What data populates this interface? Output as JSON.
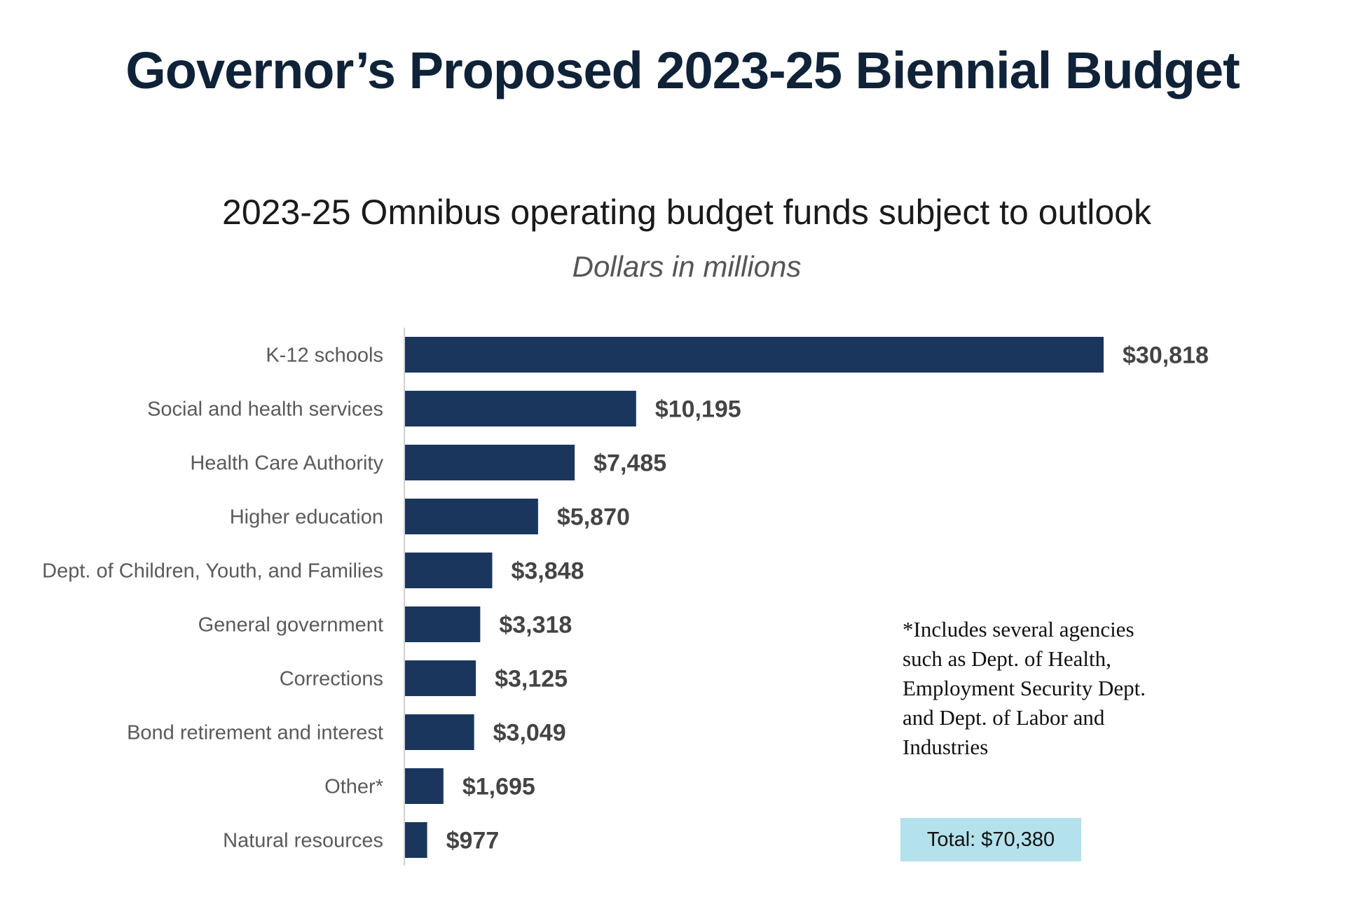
{
  "chart_data": {
    "type": "bar",
    "orientation": "horizontal",
    "title": "Governor’s Proposed 2023-25 Biennial Budget",
    "subtitle": "2023-25 Omnibus operating budget funds subject to outlook",
    "units": "Dollars in millions",
    "categories": [
      "K-12 schools",
      "Social and health services",
      "Health Care Authority",
      "Higher education",
      "Dept. of Children, Youth, and Families",
      "General government",
      "Corrections",
      "Bond retirement and interest",
      "Other*",
      "Natural resources"
    ],
    "values": [
      30818,
      10195,
      7485,
      5870,
      3848,
      3318,
      3125,
      3049,
      1695,
      977
    ],
    "value_labels": [
      "$30,818",
      "$10,195",
      "$7,485",
      "$5,870",
      "$3,848",
      "$3,318",
      "$3,125",
      "$3,049",
      "$1,695",
      "$977"
    ],
    "xlim": [
      0,
      30818
    ],
    "grid": false,
    "bar_color": "#1b365d",
    "footnote": [
      "*Includes several agencies",
      "such as Dept. of Health,",
      "Employment Security Dept.",
      "and Dept. of Labor and",
      "Industries"
    ],
    "total_label": "Total: $70,380",
    "total_color": "#b3e1ec"
  }
}
